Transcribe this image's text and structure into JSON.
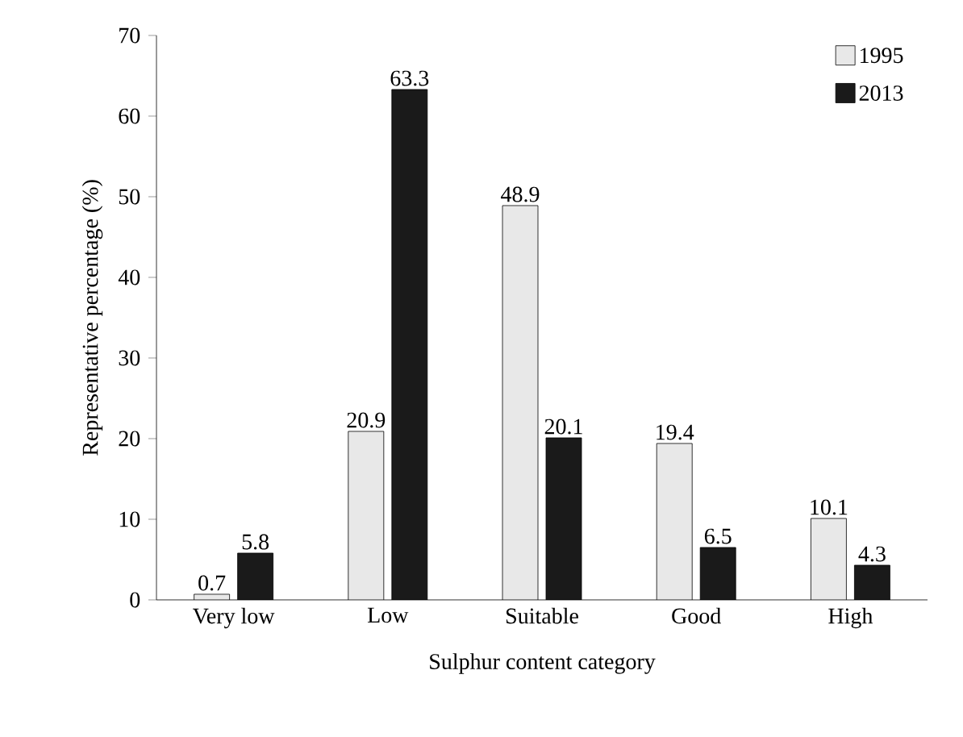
{
  "chart_data": {
    "type": "bar",
    "xlabel": "Sulphur content category",
    "ylabel": "Representative percentage (%)",
    "categories": [
      "Very low",
      "Low",
      "Suitable",
      "Good",
      "High"
    ],
    "series": [
      {
        "name": "1995",
        "color": "#e8e8e8",
        "values": [
          0.7,
          20.9,
          48.9,
          19.4,
          10.1
        ]
      },
      {
        "name": "2013",
        "color": "#1a1a1a",
        "values": [
          5.8,
          63.3,
          20.1,
          6.5,
          4.3
        ]
      }
    ],
    "ylim": [
      0,
      70
    ],
    "yticks": [
      0,
      10,
      20,
      30,
      40,
      50,
      60,
      70
    ],
    "grid": false,
    "legend": "top right",
    "data_labels": true
  }
}
